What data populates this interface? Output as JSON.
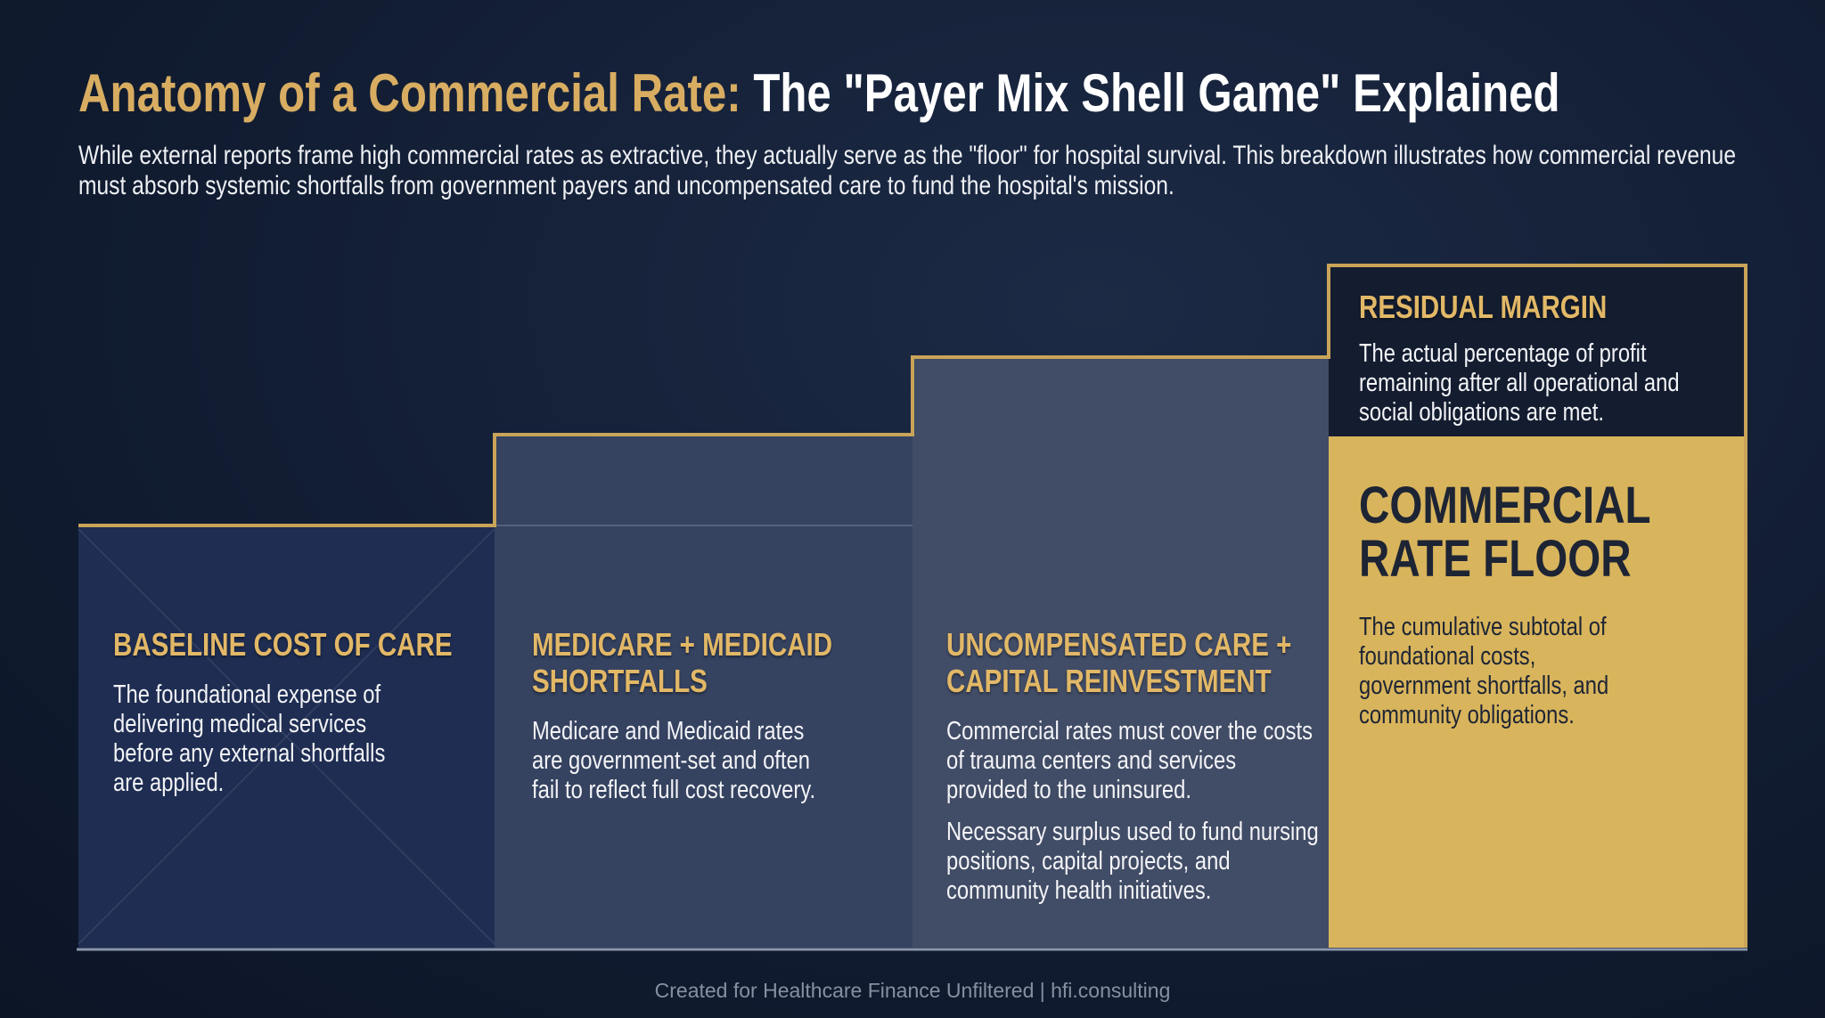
{
  "header": {
    "title_lead": "Anatomy of a Commercial Rate:",
    "title_rest": "The \"Payer Mix Shell Game\" Explained",
    "subtitle": "While external reports frame high commercial rates as extractive, they actually serve as the \"floor\" for hospital survival. This breakdown illustrates how commercial revenue must absorb systemic shortfalls from government payers and uncompensated care to fund the hospital's mission."
  },
  "steps": [
    {
      "title": "BASELINE COST OF CARE",
      "body": [
        "The foundational expense of delivering medical services before any external shortfalls are applied."
      ]
    },
    {
      "title": "MEDICARE + MEDICAID SHORTFALLS",
      "body": [
        "Medicare and Medicaid rates are government-set and often fail to reflect full cost recovery."
      ]
    },
    {
      "title": "UNCOMPENSATED CARE + CAPITAL REINVESTMENT",
      "body": [
        "Commercial rates must cover the costs of trauma centers and services provided to the uninsured.",
        "Necessary surplus used to fund nursing positions, capital projects, and community health initiatives."
      ]
    }
  ],
  "residual": {
    "title": "RESIDUAL MARGIN",
    "body": "The actual percentage of profit remaining after all operational and social obligations are met."
  },
  "floor": {
    "title": "COMMERCIAL RATE FLOOR",
    "body": "The cumulative subtotal of foundational costs, government shortfalls, and community obligations."
  },
  "footer": "Created for Healthcare Finance Unfiltered | hfi.consulting"
}
